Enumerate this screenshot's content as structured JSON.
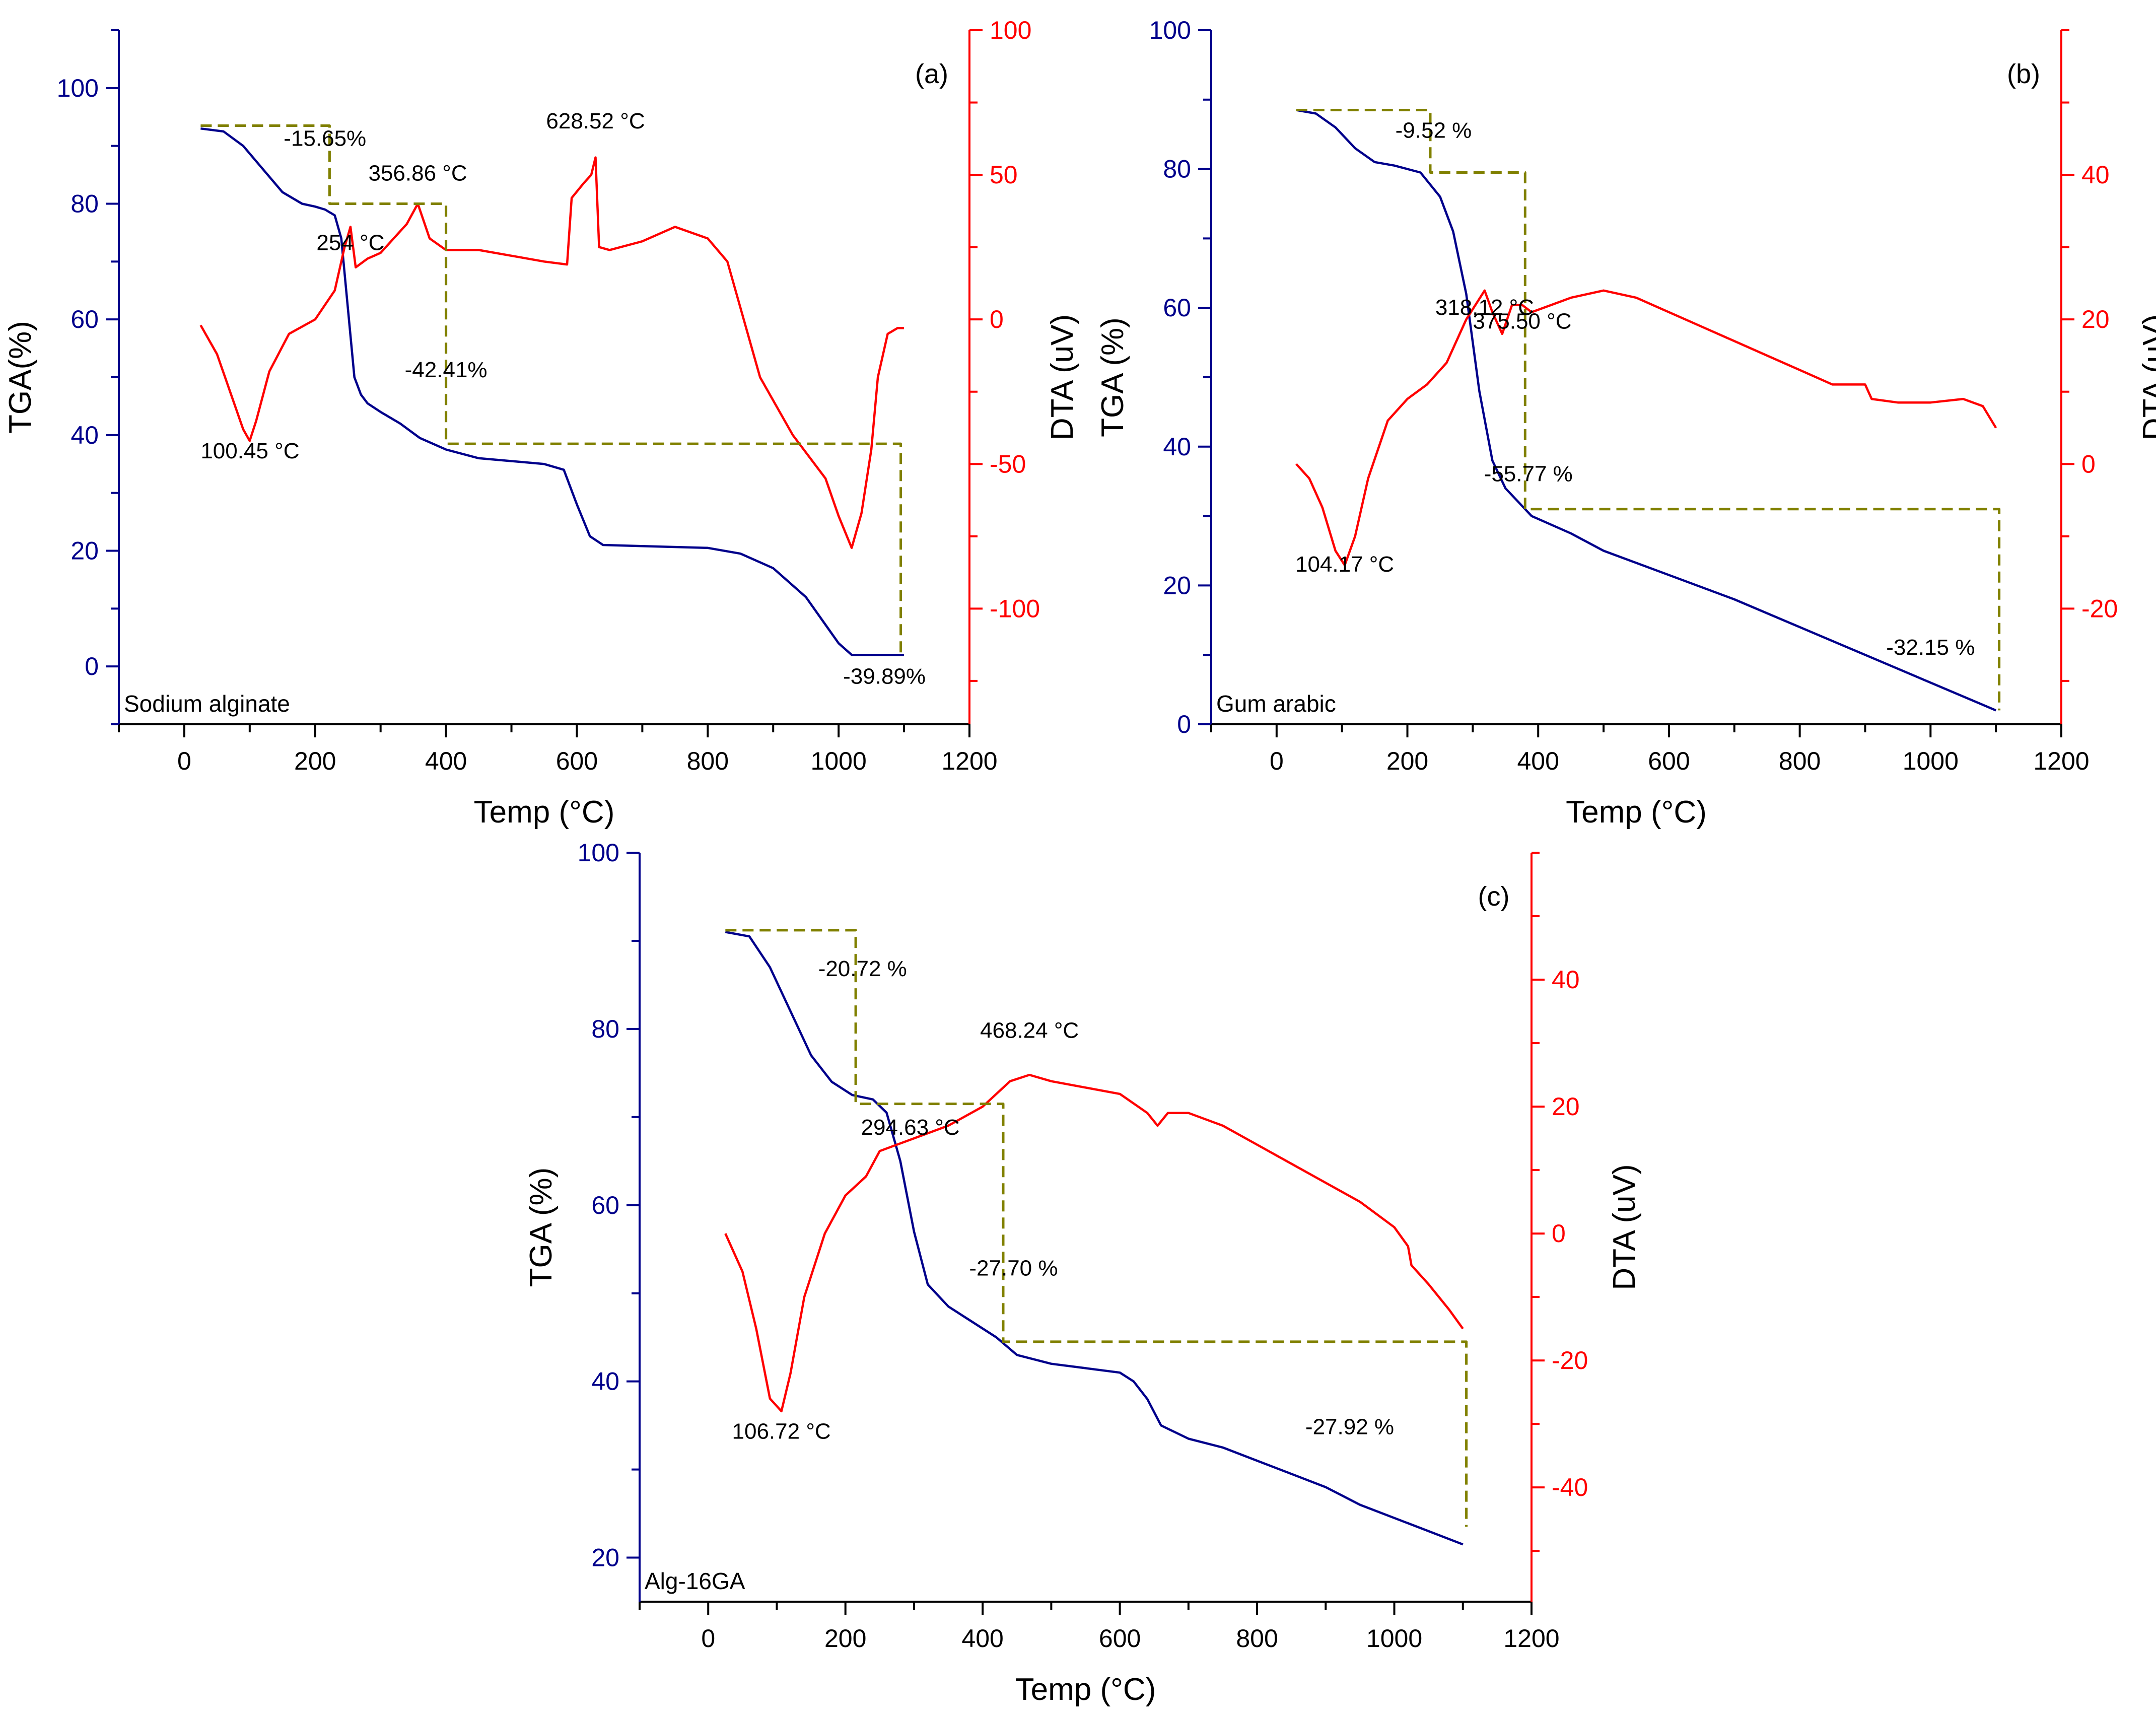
{
  "figure": {
    "background": "#ffffff"
  },
  "colors": {
    "tga": "#00008B",
    "dta": "#FF0000",
    "steps": "#808000",
    "axis": "#000000"
  },
  "chart_data": [
    {
      "id": "a",
      "type": "line",
      "panel_label": "(a)",
      "sample_label": "Sodium alginate",
      "xlabel": "Temp (°C)",
      "ylabel_left": "TGA(%)",
      "ylabel_right": "DTA (uV)",
      "xlim": [
        -100,
        1200
      ],
      "ylim_left": [
        -10,
        110
      ],
      "ylim_right": [
        -140,
        100
      ],
      "x_ticks": [
        0,
        200,
        400,
        600,
        800,
        1000,
        1200
      ],
      "y_left_ticks": [
        0,
        20,
        40,
        60,
        80,
        100
      ],
      "y_right_ticks": [
        -100,
        -50,
        0,
        50,
        100
      ],
      "series": [
        {
          "name": "TGA",
          "axis": "left",
          "color": "#00008B",
          "x": [
            25,
            60,
            90,
            120,
            150,
            180,
            200,
            215,
            230,
            240,
            250,
            260,
            270,
            280,
            300,
            330,
            360,
            400,
            450,
            500,
            550,
            580,
            600,
            620,
            640,
            700,
            800,
            850,
            900,
            950,
            1000,
            1020,
            1050,
            1100
          ],
          "y": [
            93,
            92.5,
            90,
            86,
            82,
            80,
            79.5,
            79,
            78,
            74,
            62,
            50,
            47,
            45.5,
            44,
            42,
            39.5,
            37.5,
            36,
            35.5,
            35,
            34,
            28,
            22.5,
            21,
            20.8,
            20.5,
            19.5,
            17,
            12,
            4,
            2,
            2,
            2
          ]
        },
        {
          "name": "DTA",
          "axis": "right",
          "color": "#FF0000",
          "x": [
            25,
            50,
            70,
            90,
            100,
            110,
            130,
            160,
            200,
            230,
            245,
            254,
            262,
            280,
            300,
            320,
            340,
            356.86,
            375,
            400,
            450,
            500,
            550,
            585,
            592,
            610,
            622,
            628.52,
            634,
            650,
            700,
            750,
            800,
            830,
            880,
            930,
            980,
            1000,
            1020,
            1035,
            1050,
            1060,
            1075,
            1090,
            1100
          ],
          "y": [
            -2,
            -12,
            -25,
            -38,
            -42,
            -35,
            -18,
            -5,
            0,
            10,
            25,
            32,
            18,
            21,
            23,
            28,
            33,
            40,
            28,
            24,
            24,
            22,
            20,
            19,
            42,
            47,
            50,
            56,
            25,
            24,
            27,
            32,
            28,
            20,
            -20,
            -40,
            -55,
            -68,
            -79,
            -67,
            -45,
            -20,
            -5,
            -3,
            -3
          ]
        },
        {
          "name": "steps",
          "axis": "left",
          "color": "#808000",
          "style": "dashed",
          "x": [
            25,
            222,
            222,
            400,
            400,
            1095,
            1095
          ],
          "y": [
            93.5,
            93.5,
            80,
            80,
            38.5,
            38.5,
            2
          ]
        }
      ],
      "annotations": [
        {
          "text": "100.45 °C",
          "x": 100.45,
          "y": 36
        },
        {
          "text": "254 °C",
          "x": 254,
          "y": 72
        },
        {
          "text": "-15.65%",
          "x": 215,
          "y": 90
        },
        {
          "text": "356.86 °C",
          "x": 356.86,
          "y": 84
        },
        {
          "text": "628.52 °C",
          "x": 628.52,
          "y": 93
        },
        {
          "text": "-42.41%",
          "x": 400,
          "y": 50
        },
        {
          "text": "-39.89%",
          "x": 1070,
          "y": -3
        }
      ]
    },
    {
      "id": "b",
      "type": "line",
      "panel_label": "(b)",
      "sample_label": "Gum arabic",
      "xlabel": "Temp (°C)",
      "ylabel_left": "TGA (%)",
      "ylabel_right": "DTA (uV)",
      "xlim": [
        -100,
        1200
      ],
      "ylim_left": [
        0,
        100
      ],
      "ylim_right": [
        -36,
        60
      ],
      "x_ticks": [
        0,
        200,
        400,
        600,
        800,
        1000,
        1200
      ],
      "y_left_ticks": [
        0,
        20,
        40,
        60,
        80,
        100
      ],
      "y_right_ticks": [
        -20,
        0,
        20,
        40
      ],
      "series": [
        {
          "name": "TGA",
          "axis": "left",
          "color": "#00008B",
          "x": [
            30,
            60,
            90,
            120,
            150,
            180,
            220,
            250,
            270,
            290,
            310,
            330,
            350,
            370,
            390,
            450,
            500,
            600,
            700,
            800,
            900,
            1000,
            1100
          ],
          "y": [
            88.5,
            88,
            86,
            83,
            81,
            80.5,
            79.5,
            76,
            71,
            62,
            48,
            38,
            34,
            32,
            30,
            27.5,
            25,
            21.5,
            18,
            14,
            10,
            6,
            2
          ]
        },
        {
          "name": "DTA",
          "axis": "right",
          "color": "#FF0000",
          "x": [
            30,
            50,
            70,
            90,
            104.17,
            120,
            140,
            170,
            200,
            230,
            260,
            290,
            318.12,
            330,
            345,
            360,
            375.5,
            390,
            420,
            450,
            500,
            550,
            600,
            650,
            700,
            750,
            800,
            850,
            880,
            900,
            910,
            950,
            1000,
            1050,
            1080,
            1100
          ],
          "y": [
            0,
            -2,
            -6,
            -12,
            -14,
            -10,
            -2,
            6,
            9,
            11,
            14,
            20,
            24,
            21,
            18,
            22,
            22,
            21,
            22,
            23,
            24,
            23,
            21,
            19,
            17,
            15,
            13,
            11,
            11,
            11,
            9,
            8.5,
            8.5,
            9,
            8,
            5
          ]
        },
        {
          "name": "steps",
          "axis": "left",
          "color": "#808000",
          "style": "dashed",
          "x": [
            30,
            235,
            235,
            380,
            380,
            1105,
            1105
          ],
          "y": [
            88.5,
            88.5,
            79.5,
            79.5,
            31,
            31,
            2
          ]
        }
      ],
      "annotations": [
        {
          "text": "-9.52 %",
          "x": 240,
          "y": 84.5
        },
        {
          "text": "318.12 °C",
          "x": 318.12,
          "y": 59
        },
        {
          "text": "375.50 °C",
          "x": 375.5,
          "y": 57
        },
        {
          "text": "-55.77 %",
          "x": 385,
          "y": 35
        },
        {
          "text": "104.17 °C",
          "x": 104.17,
          "y": 22
        },
        {
          "text": "-32.15 %",
          "x": 1000,
          "y": 10
        }
      ]
    },
    {
      "id": "c",
      "type": "line",
      "panel_label": "(c)",
      "sample_label": "Alg-16GA",
      "xlabel": "Temp (°C)",
      "ylabel_left": "TGA (%)",
      "ylabel_right": "DTA (uV)",
      "xlim": [
        -100,
        1200
      ],
      "ylim_left": [
        15,
        100
      ],
      "ylim_right": [
        -58,
        60
      ],
      "x_ticks": [
        0,
        200,
        400,
        600,
        800,
        1000,
        1200
      ],
      "y_left_ticks": [
        20,
        40,
        60,
        80,
        100
      ],
      "y_right_ticks": [
        -40,
        -20,
        0,
        20,
        40
      ],
      "series": [
        {
          "name": "TGA",
          "axis": "left",
          "color": "#00008B",
          "x": [
            25,
            60,
            90,
            120,
            150,
            180,
            210,
            240,
            260,
            280,
            300,
            320,
            350,
            380,
            420,
            450,
            500,
            550,
            600,
            620,
            640,
            660,
            700,
            750,
            800,
            850,
            900,
            950,
            1000,
            1050,
            1100
          ],
          "y": [
            91,
            90.5,
            87,
            82,
            77,
            74,
            72.5,
            72,
            70.5,
            65,
            57,
            51,
            48.5,
            47,
            45,
            43,
            42,
            41.5,
            41,
            40,
            38,
            35,
            33.5,
            32.5,
            31,
            29.5,
            28,
            26,
            24.5,
            23,
            21.5
          ]
        },
        {
          "name": "DTA",
          "axis": "right",
          "color": "#FF0000",
          "x": [
            25,
            50,
            70,
            90,
            106.72,
            120,
            140,
            170,
            200,
            230,
            250,
            300,
            350,
            400,
            440,
            468.24,
            500,
            550,
            600,
            640,
            655,
            670,
            700,
            750,
            800,
            850,
            900,
            950,
            1000,
            1020,
            1025,
            1050,
            1080,
            1100
          ],
          "y": [
            0,
            -6,
            -15,
            -26,
            -28,
            -22,
            -10,
            0,
            6,
            9,
            13,
            15,
            17,
            20,
            24,
            25,
            24,
            23,
            22,
            19,
            17,
            19,
            19,
            17,
            14,
            11,
            8,
            5,
            1,
            -2,
            -5,
            -8,
            -12,
            -15
          ]
        },
        {
          "name": "steps",
          "axis": "left",
          "color": "#808000",
          "style": "dashed",
          "x": [
            25,
            215,
            215,
            430,
            430,
            1105,
            1105
          ],
          "y": [
            91.2,
            91.2,
            71.5,
            71.5,
            44.5,
            44.5,
            23.5
          ]
        }
      ],
      "annotations": [
        {
          "text": "-20.72 %",
          "x": 225,
          "y": 86
        },
        {
          "text": "468.24 °C",
          "x": 468.24,
          "y": 79
        },
        {
          "text": "294.63 °C",
          "x": 294.63,
          "y": 68
        },
        {
          "text": "-27.70 %",
          "x": 445,
          "y": 52
        },
        {
          "text": "106.72 °C",
          "x": 106.72,
          "y": 33.5
        },
        {
          "text": "-27.92 %",
          "x": 935,
          "y": 34
        }
      ]
    }
  ]
}
